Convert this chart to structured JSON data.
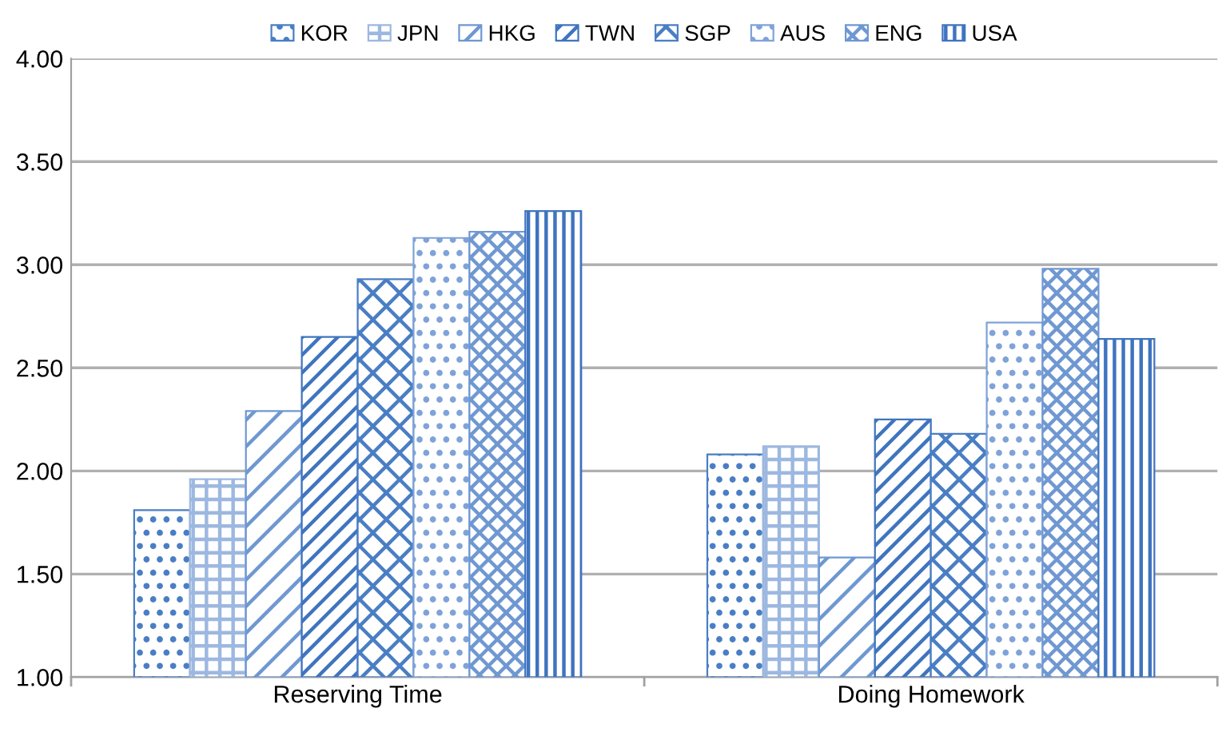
{
  "chart_data": {
    "type": "bar",
    "categories": [
      "Reserving Time",
      "Doing Homework"
    ],
    "series": [
      {
        "name": "KOR",
        "color": "#4a7ec4",
        "values": [
          1.81,
          2.08
        ]
      },
      {
        "name": "JPN",
        "color": "#9db8e0",
        "values": [
          1.96,
          2.12
        ]
      },
      {
        "name": "HKG",
        "color": "#6f98d2",
        "values": [
          2.29,
          1.58
        ]
      },
      {
        "name": "TWN",
        "color": "#3f74bf",
        "values": [
          2.65,
          2.25
        ]
      },
      {
        "name": "SGP",
        "color": "#4a7ec4",
        "values": [
          2.93,
          2.18
        ]
      },
      {
        "name": "AUS",
        "color": "#7fa3d8",
        "values": [
          3.13,
          2.72
        ]
      },
      {
        "name": "ENG",
        "color": "#6f98d2",
        "values": [
          3.16,
          2.98
        ]
      },
      {
        "name": "USA",
        "color": "#3f74bf",
        "values": [
          3.26,
          2.64
        ]
      }
    ],
    "ylim": [
      1.0,
      4.0
    ],
    "yticks": [
      {
        "value": 1.0,
        "label": "1.00"
      },
      {
        "value": 1.5,
        "label": "1.50"
      },
      {
        "value": 2.0,
        "label": "2.00"
      },
      {
        "value": 2.5,
        "label": "2.50"
      },
      {
        "value": 3.0,
        "label": "3.00"
      },
      {
        "value": 3.5,
        "label": "3.50"
      },
      {
        "value": 4.0,
        "label": "4.00"
      }
    ],
    "grid": "y",
    "legend": "top"
  }
}
